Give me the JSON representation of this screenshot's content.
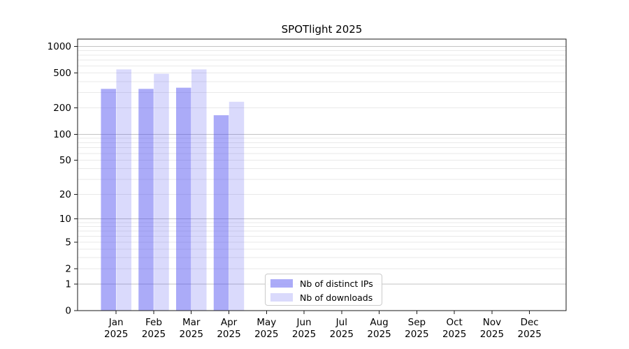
{
  "title": "SPOTlight 2025",
  "chart_data": {
    "type": "bar",
    "title": "SPOTlight 2025",
    "categories": [
      "Jan 2025",
      "Feb 2025",
      "Mar 2025",
      "Apr 2025",
      "May 2025",
      "Jun 2025",
      "Jul 2025",
      "Aug 2025",
      "Sep 2025",
      "Oct 2025",
      "Nov 2025",
      "Dec 2025"
    ],
    "series": [
      {
        "name": "Nb of distinct IPs",
        "color": "rgba(68,68,240,0.45)",
        "values": [
          330,
          330,
          340,
          165,
          null,
          null,
          null,
          null,
          null,
          null,
          null,
          null
        ]
      },
      {
        "name": "Nb of downloads",
        "color": "rgba(68,68,240,0.20)",
        "values": [
          550,
          490,
          550,
          235,
          null,
          null,
          null,
          null,
          null,
          null,
          null,
          null
        ]
      }
    ],
    "yscale": "log10(1+v)",
    "y_ticks": [
      0,
      1,
      2,
      5,
      10,
      20,
      50,
      100,
      200,
      500,
      1000
    ],
    "ylim": [
      0,
      1200
    ],
    "grid": "major+minor",
    "legend_position": "lower-center-inside",
    "colors": {
      "major_grid": "#c3c3c3",
      "minor_grid": "#e9e9e9",
      "axis": "#1a1a1a",
      "text": "#000000"
    }
  }
}
